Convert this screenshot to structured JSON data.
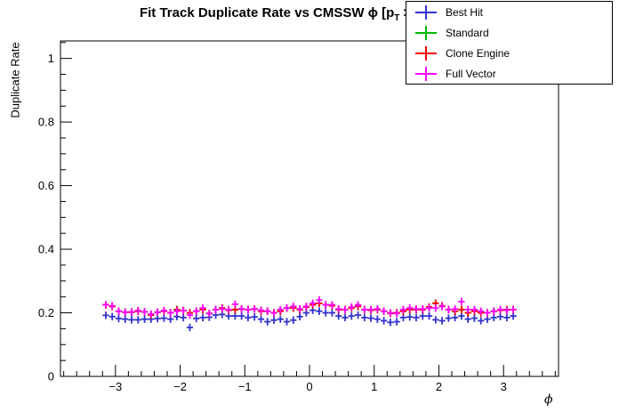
{
  "title": {
    "prefix": "Fit Track Duplicate Rate vs CMSSW ϕ [p",
    "sub": "T",
    "suffix": " > 0.0 GeV/c]"
  },
  "chart_data": {
    "type": "scatter",
    "title": "Fit Track Duplicate Rate vs CMSSW phi [p_T > 0.0 GeV/c]",
    "xlabel": "ϕ",
    "ylabel": "Duplicate Rate",
    "xlim": [
      -3.85,
      3.85
    ],
    "ylim": [
      0,
      1.055
    ],
    "x_major_ticks": [
      -3,
      -2,
      -1,
      0,
      1,
      2,
      3
    ],
    "x_tick_labels": [
      "−3",
      "−2",
      "−1",
      "0",
      "1",
      "2",
      "3"
    ],
    "x_minor_step": 0.2,
    "y_major_ticks": [
      0,
      0.2,
      0.4,
      0.6,
      0.8,
      1
    ],
    "y_tick_labels": [
      "0",
      "0.2",
      "0.4",
      "0.6",
      "0.8",
      "1"
    ],
    "y_minor_step": 0.05,
    "grid": false,
    "legend_position": "top-right",
    "marker": "plus",
    "x": [
      -3.15,
      -3.05,
      -2.95,
      -2.85,
      -2.75,
      -2.65,
      -2.55,
      -2.45,
      -2.35,
      -2.25,
      -2.15,
      -2.05,
      -1.95,
      -1.85,
      -1.75,
      -1.65,
      -1.55,
      -1.45,
      -1.35,
      -1.25,
      -1.15,
      -1.05,
      -0.95,
      -0.85,
      -0.75,
      -0.65,
      -0.55,
      -0.45,
      -0.35,
      -0.25,
      -0.15,
      -0.05,
      0.05,
      0.15,
      0.25,
      0.35,
      0.45,
      0.55,
      0.65,
      0.75,
      0.85,
      0.95,
      1.05,
      1.15,
      1.25,
      1.35,
      1.45,
      1.55,
      1.65,
      1.75,
      1.85,
      1.95,
      2.05,
      2.15,
      2.25,
      2.35,
      2.45,
      2.55,
      2.65,
      2.75,
      2.85,
      2.95,
      3.05,
      3.15
    ],
    "series": [
      {
        "name": "Best Hit",
        "color": "#3333cc",
        "values": [
          0.192,
          0.188,
          0.182,
          0.18,
          0.178,
          0.178,
          0.18,
          0.18,
          0.182,
          0.183,
          0.18,
          0.188,
          0.185,
          0.154,
          0.182,
          0.185,
          0.186,
          0.193,
          0.195,
          0.19,
          0.19,
          0.19,
          0.185,
          0.187,
          0.18,
          0.172,
          0.177,
          0.18,
          0.172,
          0.177,
          0.188,
          0.2,
          0.208,
          0.205,
          0.2,
          0.2,
          0.19,
          0.185,
          0.19,
          0.193,
          0.185,
          0.183,
          0.18,
          0.175,
          0.17,
          0.172,
          0.185,
          0.187,
          0.185,
          0.19,
          0.19,
          0.178,
          0.175,
          0.183,
          0.185,
          0.19,
          0.18,
          0.183,
          0.175,
          0.18,
          0.185,
          0.188,
          0.185,
          0.19
        ]
      },
      {
        "name": "Standard",
        "color": "#00bb00",
        "values": [
          0.225,
          0.22,
          0.205,
          0.202,
          0.202,
          0.205,
          0.203,
          0.193,
          0.202,
          0.205,
          0.2,
          0.21,
          0.207,
          0.2,
          0.205,
          0.21,
          0.198,
          0.21,
          0.215,
          0.208,
          0.21,
          0.212,
          0.21,
          0.212,
          0.205,
          0.205,
          0.2,
          0.205,
          0.215,
          0.215,
          0.21,
          0.218,
          0.225,
          0.23,
          0.225,
          0.222,
          0.21,
          0.21,
          0.215,
          0.22,
          0.21,
          0.208,
          0.21,
          0.205,
          0.198,
          0.2,
          0.205,
          0.21,
          0.21,
          0.21,
          0.218,
          0.23,
          0.222,
          0.21,
          0.205,
          0.21,
          0.2,
          0.205,
          0.2,
          0.2,
          0.205,
          0.208,
          0.21,
          0.21
        ]
      },
      {
        "name": "Clone Engine",
        "color": "#ff0000",
        "values": [
          0.225,
          0.22,
          0.205,
          0.202,
          0.202,
          0.205,
          0.203,
          0.193,
          0.202,
          0.205,
          0.2,
          0.21,
          0.207,
          0.2,
          0.205,
          0.21,
          0.198,
          0.21,
          0.215,
          0.208,
          0.21,
          0.212,
          0.21,
          0.212,
          0.205,
          0.205,
          0.2,
          0.205,
          0.215,
          0.215,
          0.21,
          0.218,
          0.225,
          0.23,
          0.225,
          0.222,
          0.21,
          0.21,
          0.215,
          0.22,
          0.21,
          0.208,
          0.21,
          0.205,
          0.198,
          0.2,
          0.205,
          0.21,
          0.21,
          0.21,
          0.218,
          0.23,
          0.222,
          0.21,
          0.205,
          0.21,
          0.2,
          0.205,
          0.2,
          0.2,
          0.205,
          0.208,
          0.21,
          0.21
        ]
      },
      {
        "name": "Full Vector",
        "color": "#ff00ff",
        "values": [
          0.225,
          0.222,
          0.205,
          0.202,
          0.203,
          0.207,
          0.203,
          0.196,
          0.202,
          0.207,
          0.2,
          0.205,
          0.207,
          0.193,
          0.205,
          0.215,
          0.198,
          0.21,
          0.212,
          0.21,
          0.227,
          0.212,
          0.21,
          0.212,
          0.208,
          0.205,
          0.2,
          0.21,
          0.215,
          0.22,
          0.212,
          0.22,
          0.23,
          0.24,
          0.225,
          0.225,
          0.212,
          0.21,
          0.218,
          0.225,
          0.21,
          0.21,
          0.212,
          0.205,
          0.2,
          0.198,
          0.21,
          0.215,
          0.212,
          0.212,
          0.215,
          0.215,
          0.22,
          0.21,
          0.212,
          0.235,
          0.21,
          0.21,
          0.205,
          0.2,
          0.205,
          0.21,
          0.208,
          0.21
        ]
      }
    ]
  }
}
